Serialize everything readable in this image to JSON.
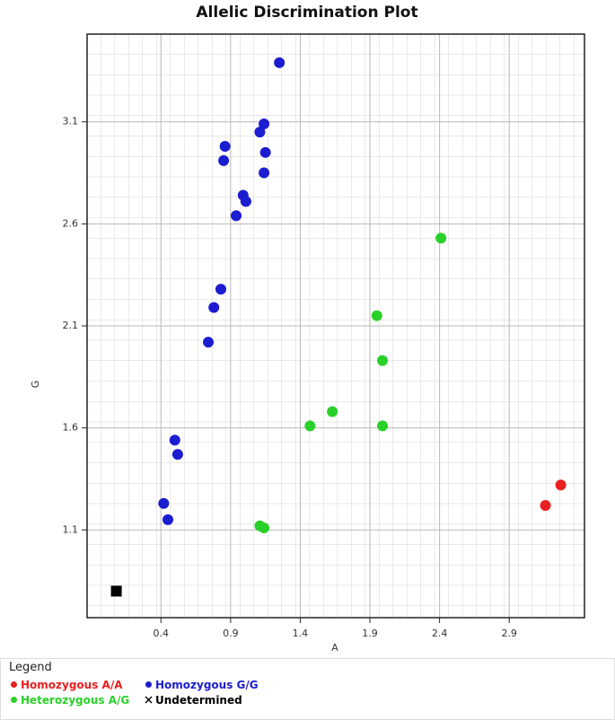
{
  "chart_data": {
    "type": "scatter",
    "title": "Allelic Discrimination Plot",
    "x_label": "A",
    "y_label": "G",
    "xlim": [
      -0.13,
      3.44
    ],
    "ylim": [
      0.67,
      3.53
    ],
    "xticks": [
      0.4,
      0.9,
      1.4,
      1.9,
      2.4,
      2.9
    ],
    "yticks": [
      1.1,
      1.6,
      2.1,
      2.6,
      3.1
    ],
    "grid": true,
    "legend_title": "Legend",
    "series": [
      {
        "name": "Homozygous A/A",
        "color": "#e82020",
        "marker": "circle",
        "x": [
          3.27,
          3.16
        ],
        "values": [
          1.32,
          1.22
        ]
      },
      {
        "name": "Homozygous G/G",
        "color": "#1c1cd0",
        "marker": "circle",
        "x": [
          1.25,
          1.14,
          1.11,
          0.86,
          1.15,
          0.85,
          1.14,
          0.99,
          1.01,
          0.94,
          0.83,
          0.78,
          0.74,
          0.5,
          0.52,
          0.42,
          0.45
        ],
        "values": [
          3.39,
          3.09,
          3.05,
          2.98,
          2.95,
          2.91,
          2.85,
          2.74,
          2.71,
          2.64,
          2.28,
          2.19,
          2.02,
          1.54,
          1.47,
          1.23,
          1.15
        ]
      },
      {
        "name": "Heterozygous A/G",
        "color": "#2ad02a",
        "marker": "circle",
        "x": [
          2.41,
          1.95,
          1.99,
          1.63,
          1.47,
          1.99,
          1.11,
          1.14
        ],
        "values": [
          2.53,
          2.15,
          1.93,
          1.68,
          1.61,
          1.61,
          1.12,
          1.11
        ]
      },
      {
        "name": "Undetermined",
        "color": "#000000",
        "marker": "square",
        "x": [
          0.08
        ],
        "values": [
          0.8
        ]
      }
    ]
  }
}
